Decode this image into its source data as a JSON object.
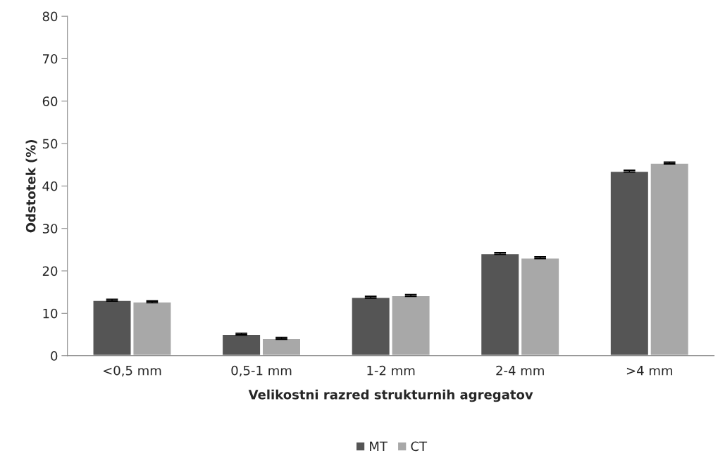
{
  "chart_data": {
    "type": "bar",
    "xlabel": "Velikostni razred strukturnih agregatov",
    "ylabel": "Odstotek (%)",
    "categories": [
      "<0,5 mm",
      "0,5-1 mm",
      "1-2 mm",
      "2-4 mm",
      ">4 mm"
    ],
    "series": [
      {
        "name": "MT",
        "color": "#555555",
        "values": [
          13.1,
          5.1,
          13.8,
          24.1,
          43.5
        ],
        "errors": [
          0.2,
          0.2,
          0.2,
          0.2,
          0.2
        ]
      },
      {
        "name": "CT",
        "color": "#a8a8a8",
        "values": [
          12.7,
          4.1,
          14.2,
          23.1,
          45.4
        ],
        "errors": [
          0.2,
          0.2,
          0.2,
          0.2,
          0.2
        ]
      }
    ],
    "ylim": [
      0,
      80
    ],
    "yticks": [
      0,
      10,
      20,
      30,
      40,
      50,
      60,
      70,
      80
    ],
    "grid": false,
    "legend": "bottom"
  }
}
